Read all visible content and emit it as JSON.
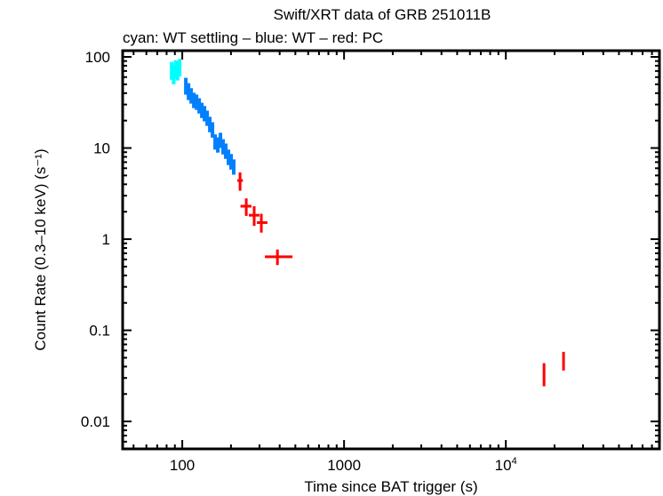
{
  "chart_data": {
    "type": "scatter",
    "title": "Swift/XRT data of GRB 251011B",
    "subtitle": "cyan: WT settling – blue: WT – red: PC",
    "xlabel": "Time since BAT trigger (s)",
    "ylabel": "Count Rate (0.3–10 keV) (s⁻¹)",
    "xscale": "log",
    "yscale": "log",
    "xlim": [
      42.8,
      89000
    ],
    "ylim": [
      0.005,
      117
    ],
    "grid": false,
    "x_ticks": [
      {
        "value": 100,
        "label": "100"
      },
      {
        "value": 1000,
        "label": "1000"
      },
      {
        "value": 10000,
        "label": "10",
        "exponent": "4"
      }
    ],
    "y_ticks": [
      {
        "value": 100,
        "label": "100"
      },
      {
        "value": 10,
        "label": "10"
      },
      {
        "value": 1,
        "label": "1"
      },
      {
        "value": 0.1,
        "label": "0.1"
      },
      {
        "value": 0.01,
        "label": "0.01"
      }
    ],
    "series": [
      {
        "name": "WT settling",
        "color": "#00ffff",
        "points": [
          {
            "t": 86.0,
            "t_lo": 85.0,
            "t_hi": 87.2,
            "rate": 70,
            "rate_lo": 56,
            "rate_hi": 88
          },
          {
            "t": 88.5,
            "t_lo": 87.2,
            "t_hi": 89.8,
            "rate": 64,
            "rate_lo": 50,
            "rate_hi": 82
          },
          {
            "t": 91.0,
            "t_lo": 89.8,
            "t_hi": 92.3,
            "rate": 73,
            "rate_lo": 58,
            "rate_hi": 92
          },
          {
            "t": 93.6,
            "t_lo": 92.3,
            "t_hi": 95.0,
            "rate": 70,
            "rate_lo": 55,
            "rate_hi": 89
          },
          {
            "t": 96.3,
            "t_lo": 95.0,
            "t_hi": 97.6,
            "rate": 76,
            "rate_lo": 61,
            "rate_hi": 95
          }
        ]
      },
      {
        "name": "WT",
        "color": "#0080ff",
        "points": [
          {
            "t": 105.2,
            "t_lo": 103.5,
            "t_hi": 107.1,
            "rate": 47.7,
            "rate_lo": 38.5,
            "rate_hi": 58.9
          },
          {
            "t": 109.3,
            "t_lo": 107.1,
            "t_hi": 111.3,
            "rate": 41.6,
            "rate_lo": 33.6,
            "rate_hi": 51.5
          },
          {
            "t": 113.5,
            "t_lo": 111.3,
            "t_hi": 115.7,
            "rate": 37.3,
            "rate_lo": 30.7,
            "rate_hi": 45.3
          },
          {
            "t": 117.9,
            "t_lo": 115.7,
            "t_hi": 120.2,
            "rate": 33.3,
            "rate_lo": 27.4,
            "rate_hi": 40.4
          },
          {
            "t": 122.5,
            "t_lo": 120.2,
            "t_hi": 124.8,
            "rate": 31.8,
            "rate_lo": 26.2,
            "rate_hi": 38.6
          },
          {
            "t": 127.2,
            "t_lo": 124.8,
            "t_hi": 129.6,
            "rate": 29.0,
            "rate_lo": 23.9,
            "rate_hi": 35.2
          },
          {
            "t": 132.1,
            "t_lo": 129.6,
            "t_hi": 134.6,
            "rate": 25.9,
            "rate_lo": 21.3,
            "rate_hi": 31.4
          },
          {
            "t": 137.2,
            "t_lo": 134.6,
            "t_hi": 139.8,
            "rate": 23.8,
            "rate_lo": 19.6,
            "rate_hi": 28.9
          },
          {
            "t": 142.5,
            "t_lo": 139.8,
            "t_hi": 145.2,
            "rate": 21.2,
            "rate_lo": 17.5,
            "rate_hi": 25.7
          },
          {
            "t": 148.0,
            "t_lo": 145.2,
            "t_hi": 150.8,
            "rate": 18.1,
            "rate_lo": 14.9,
            "rate_hi": 22.0
          },
          {
            "t": 153.7,
            "t_lo": 150.8,
            "t_hi": 156.6,
            "rate": 15.8,
            "rate_lo": 13.0,
            "rate_hi": 19.2
          },
          {
            "t": 159.6,
            "t_lo": 156.6,
            "t_hi": 162.7,
            "rate": 11.6,
            "rate_lo": 9.6,
            "rate_hi": 14.1
          },
          {
            "t": 165.8,
            "t_lo": 162.7,
            "t_hi": 169.0,
            "rate": 10.8,
            "rate_lo": 8.9,
            "rate_hi": 13.1
          },
          {
            "t": 172.2,
            "t_lo": 169.0,
            "t_hi": 175.5,
            "rate": 12.1,
            "rate_lo": 10.0,
            "rate_hi": 14.7
          },
          {
            "t": 178.8,
            "t_lo": 175.5,
            "t_hi": 182.2,
            "rate": 10.3,
            "rate_lo": 8.5,
            "rate_hi": 12.5
          },
          {
            "t": 185.7,
            "t_lo": 182.2,
            "t_hi": 189.3,
            "rate": 9.2,
            "rate_lo": 7.6,
            "rate_hi": 11.2
          },
          {
            "t": 192.9,
            "t_lo": 189.3,
            "t_hi": 196.6,
            "rate": 7.9,
            "rate_lo": 6.5,
            "rate_hi": 9.6
          },
          {
            "t": 200.3,
            "t_lo": 196.6,
            "t_hi": 204.1,
            "rate": 7.1,
            "rate_lo": 5.8,
            "rate_hi": 8.6
          },
          {
            "t": 208.0,
            "t_lo": 204.1,
            "t_hi": 212.0,
            "rate": 6.2,
            "rate_lo": 5.1,
            "rate_hi": 7.5
          }
        ]
      },
      {
        "name": "PC",
        "color": "#ff0000",
        "points": [
          {
            "t": 227.6,
            "t_lo": 219,
            "t_hi": 237,
            "rate": 4.4,
            "rate_lo": 3.4,
            "rate_hi": 5.4
          },
          {
            "t": 248.6,
            "t_lo": 229,
            "t_hi": 268,
            "rate": 2.3,
            "rate_lo": 1.8,
            "rate_hi": 2.8
          },
          {
            "t": 278.3,
            "t_lo": 258,
            "t_hi": 300,
            "rate": 1.83,
            "rate_lo": 1.4,
            "rate_hi": 2.3
          },
          {
            "t": 308.1,
            "t_lo": 289,
            "t_hi": 336,
            "rate": 1.52,
            "rate_lo": 1.18,
            "rate_hi": 1.9
          },
          {
            "t": 387.4,
            "t_lo": 324,
            "t_hi": 480,
            "rate": 0.64,
            "rate_lo": 0.52,
            "rate_hi": 0.77
          },
          {
            "t": 17220,
            "t_lo": 17000,
            "t_hi": 17450,
            "rate": 0.0336,
            "rate_lo": 0.0243,
            "rate_hi": 0.0436
          },
          {
            "t": 22730,
            "t_lo": 22450,
            "t_hi": 23000,
            "rate": 0.0471,
            "rate_lo": 0.0362,
            "rate_hi": 0.058
          }
        ]
      }
    ]
  }
}
